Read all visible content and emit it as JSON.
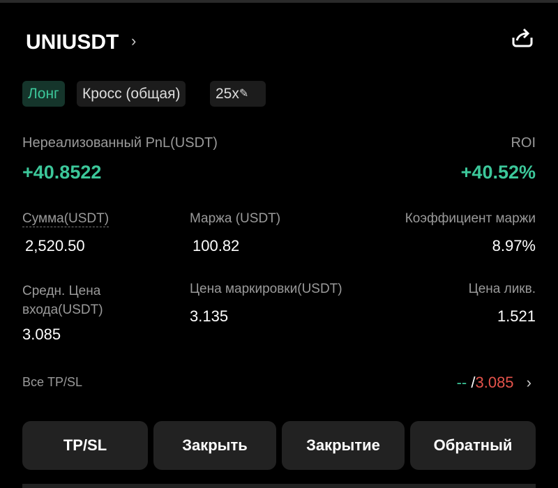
{
  "header": {
    "symbol": "UNIUSDT"
  },
  "tags": {
    "side": "Лонг",
    "margin_mode": "Кросс (общая)",
    "leverage": "25x"
  },
  "pnl": {
    "label": "Нереализованный PnL(USDT)",
    "value": "+40.8522",
    "roi_label": "ROI",
    "roi_value": "+40.52%"
  },
  "stats": [
    {
      "label": "Сумма(USDT)",
      "value": "2,520.50"
    },
    {
      "label": "Маржа (USDT)",
      "value": "100.82"
    },
    {
      "label": "Коэффициент маржи",
      "value": "8.97%"
    },
    {
      "label": "Средн. Цена входа(USDT)",
      "value": "3.085"
    },
    {
      "label": "Цена маркировки(USDT)",
      "value": "3.135"
    },
    {
      "label": "Цена ликв.",
      "value": "1.521"
    }
  ],
  "tpsl": {
    "label": "Все TP/SL",
    "tp": "--",
    "separator": "/",
    "sl": "3.085"
  },
  "buttons": [
    "TP/SL",
    "Закрыть",
    "Закрытие",
    "Обратный"
  ],
  "colors": {
    "profit": "#3cc79a",
    "loss": "#e5534b",
    "background": "#000000"
  }
}
